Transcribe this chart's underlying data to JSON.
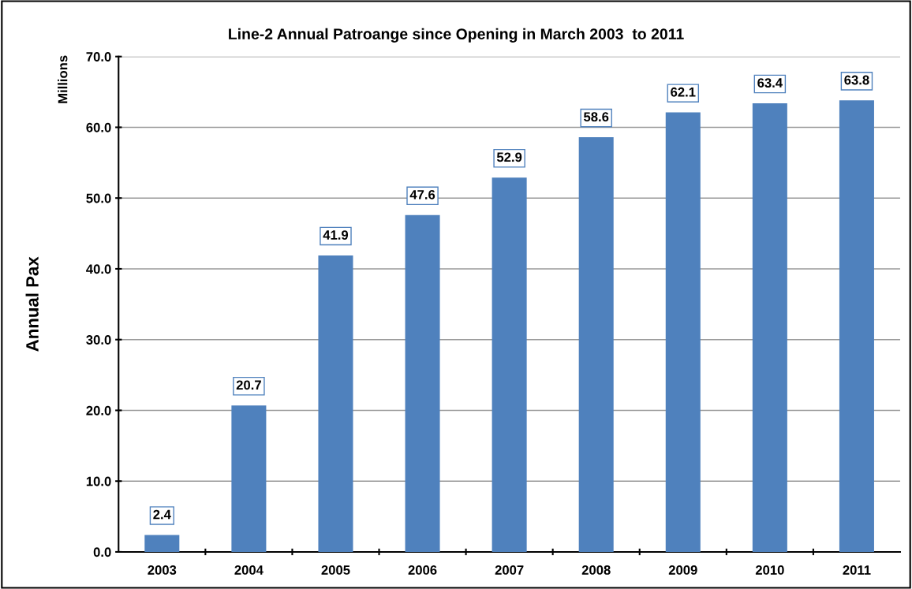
{
  "chart_data": {
    "type": "bar",
    "title": "Line-2 Annual Patroange since Opening in March 2003  to 2011",
    "ylabel": "Annual Pax",
    "annotations": [
      "Millions"
    ],
    "categories": [
      "2003",
      "2004",
      "2005",
      "2006",
      "2007",
      "2008",
      "2009",
      "2010",
      "2011"
    ],
    "values": [
      2.4,
      20.7,
      41.9,
      47.6,
      52.9,
      58.6,
      62.1,
      63.4,
      63.8
    ],
    "color": "#4f81bd",
    "ylim": [
      0,
      70
    ],
    "yticks": [
      {
        "value": 0,
        "label": "0.0"
      },
      {
        "value": 10,
        "label": "10.0"
      },
      {
        "value": 20,
        "label": "20.0"
      },
      {
        "value": 30,
        "label": "30.0"
      },
      {
        "value": 40,
        "label": "40.0"
      },
      {
        "value": 50,
        "label": "50.0"
      },
      {
        "value": 60,
        "label": "60.0"
      },
      {
        "value": 70,
        "label": "70.0"
      }
    ],
    "grid": "y",
    "data_labels": true,
    "legend": false
  }
}
